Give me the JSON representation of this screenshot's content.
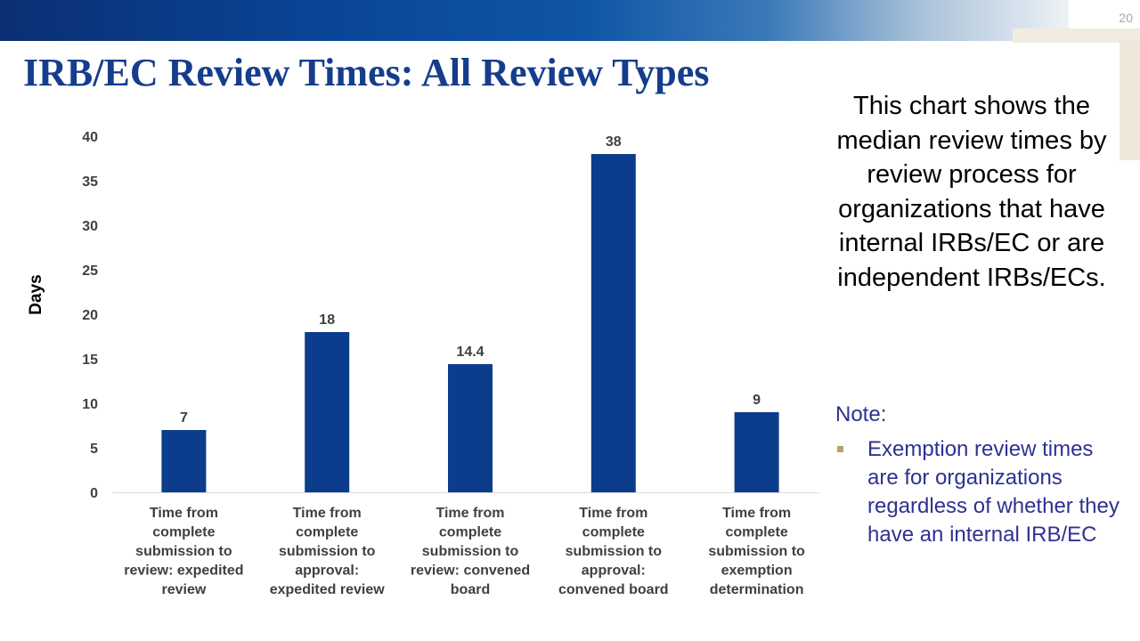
{
  "slide": {
    "number": "20",
    "title": "IRB/EC Review Times: All Review Types"
  },
  "description": "This chart shows the median review times by review process for organizations that have internal IRBs/EC or are independent IRBs/ECs.",
  "note": {
    "heading": "Note:",
    "items": [
      "Exemption review times are for organizations regardless of whether they have an internal IRB/EC"
    ]
  },
  "colors": {
    "bar": "#0b3d8c",
    "title": "#163d8c",
    "note": "#2e3192"
  },
  "chart_data": {
    "type": "bar",
    "title": "",
    "ylabel": "Days",
    "ylim": [
      0,
      40
    ],
    "yticks": [
      0,
      5,
      10,
      15,
      20,
      25,
      30,
      35,
      40
    ],
    "grid": false,
    "categories": [
      [
        "Time from",
        "complete",
        "submission to",
        "review: expedited",
        "review"
      ],
      [
        "Time from",
        "complete",
        "submission to",
        "approval:",
        "expedited review"
      ],
      [
        "Time from",
        "complete",
        "submission to",
        "review: convened",
        "board"
      ],
      [
        "Time from",
        "complete",
        "submission to",
        "approval:",
        "convened board"
      ],
      [
        "Time from",
        "complete",
        "submission to",
        "exemption",
        "determination"
      ]
    ],
    "values": [
      7,
      18,
      14.4,
      38,
      9
    ],
    "data_labels": [
      "7",
      "18",
      "14.4",
      "38",
      "9"
    ]
  }
}
